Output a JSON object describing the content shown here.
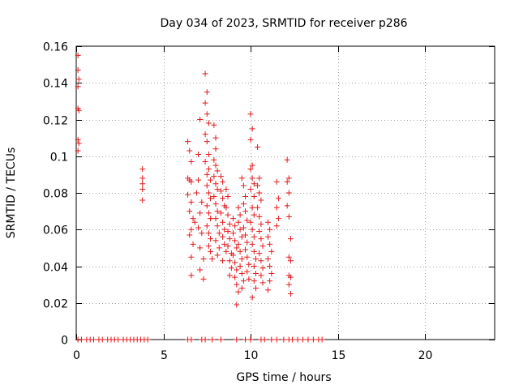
{
  "chart_data": {
    "type": "scatter",
    "title": "Day 034 of 2023, SRMTID for receiver p286",
    "xlabel": "GPS time / hours",
    "ylabel": "SRMTID / TECUs",
    "xlim": [
      0,
      24
    ],
    "ylim": [
      0,
      0.16
    ],
    "xticks": [
      0,
      5,
      10,
      15,
      20
    ],
    "yticks": [
      0,
      0.02,
      0.04,
      0.06,
      0.08,
      0.1,
      0.12,
      0.14,
      0.16
    ],
    "ytick_labels": [
      "0",
      "0.02",
      "0.04",
      "0.06",
      "0.08",
      "0.1",
      "0.12",
      "0.14",
      "0.16"
    ],
    "grid": true,
    "marker": "+",
    "series": [
      {
        "name": "SRMTID",
        "color": "#e41a1c",
        "points": [
          [
            0.1,
            0.155
          ],
          [
            0.1,
            0.147
          ],
          [
            0.15,
            0.142
          ],
          [
            0.1,
            0.138
          ],
          [
            0.1,
            0.126
          ],
          [
            0.15,
            0.125
          ],
          [
            0.1,
            0.109
          ],
          [
            0.15,
            0.107
          ],
          [
            0.1,
            0.103
          ],
          [
            3.8,
            0.093
          ],
          [
            3.8,
            0.088
          ],
          [
            3.8,
            0.085
          ],
          [
            3.8,
            0.082
          ],
          [
            3.8,
            0.076
          ],
          [
            6.4,
            0.108
          ],
          [
            6.5,
            0.103
          ],
          [
            6.6,
            0.097
          ],
          [
            6.4,
            0.088
          ],
          [
            6.5,
            0.087
          ],
          [
            6.6,
            0.086
          ],
          [
            6.4,
            0.079
          ],
          [
            6.6,
            0.075
          ],
          [
            6.5,
            0.07
          ],
          [
            6.7,
            0.066
          ],
          [
            6.6,
            0.06
          ],
          [
            6.5,
            0.057
          ],
          [
            6.7,
            0.052
          ],
          [
            6.6,
            0.045
          ],
          [
            6.6,
            0.035
          ],
          [
            6.8,
            0.064
          ],
          [
            6.9,
            0.08
          ],
          [
            7.0,
            0.101
          ],
          [
            7.1,
            0.12
          ],
          [
            7.0,
            0.087
          ],
          [
            7.2,
            0.075
          ],
          [
            7.1,
            0.069
          ],
          [
            7.0,
            0.061
          ],
          [
            7.2,
            0.058
          ],
          [
            7.1,
            0.05
          ],
          [
            7.3,
            0.044
          ],
          [
            7.1,
            0.038
          ],
          [
            7.3,
            0.033
          ],
          [
            7.4,
            0.145
          ],
          [
            7.5,
            0.135
          ],
          [
            7.4,
            0.129
          ],
          [
            7.5,
            0.123
          ],
          [
            7.6,
            0.118
          ],
          [
            7.4,
            0.112
          ],
          [
            7.5,
            0.108
          ],
          [
            7.6,
            0.101
          ],
          [
            7.4,
            0.097
          ],
          [
            7.6,
            0.093
          ],
          [
            7.5,
            0.09
          ],
          [
            7.7,
            0.087
          ],
          [
            7.5,
            0.084
          ],
          [
            7.6,
            0.08
          ],
          [
            7.7,
            0.077
          ],
          [
            7.5,
            0.073
          ],
          [
            7.6,
            0.069
          ],
          [
            7.7,
            0.066
          ],
          [
            7.5,
            0.062
          ],
          [
            7.6,
            0.058
          ],
          [
            7.7,
            0.055
          ],
          [
            7.6,
            0.051
          ],
          [
            7.7,
            0.048
          ],
          [
            7.8,
            0.044
          ],
          [
            7.9,
            0.117
          ],
          [
            8.0,
            0.11
          ],
          [
            8.0,
            0.104
          ],
          [
            7.9,
            0.098
          ],
          [
            8.0,
            0.095
          ],
          [
            8.1,
            0.092
          ],
          [
            7.9,
            0.089
          ],
          [
            8.0,
            0.085
          ],
          [
            8.1,
            0.082
          ],
          [
            7.9,
            0.078
          ],
          [
            8.0,
            0.074
          ],
          [
            8.1,
            0.07
          ],
          [
            8.0,
            0.066
          ],
          [
            8.1,
            0.062
          ],
          [
            8.2,
            0.058
          ],
          [
            8.0,
            0.054
          ],
          [
            8.2,
            0.05
          ],
          [
            8.1,
            0.046
          ],
          [
            8.3,
            0.089
          ],
          [
            8.4,
            0.086
          ],
          [
            8.3,
            0.081
          ],
          [
            8.4,
            0.077
          ],
          [
            8.5,
            0.073
          ],
          [
            8.3,
            0.069
          ],
          [
            8.4,
            0.064
          ],
          [
            8.5,
            0.06
          ],
          [
            8.4,
            0.056
          ],
          [
            8.5,
            0.052
          ],
          [
            8.6,
            0.048
          ],
          [
            8.4,
            0.043
          ],
          [
            8.6,
            0.082
          ],
          [
            8.7,
            0.078
          ],
          [
            8.6,
            0.072
          ],
          [
            8.7,
            0.068
          ],
          [
            8.8,
            0.063
          ],
          [
            8.7,
            0.059
          ],
          [
            8.8,
            0.055
          ],
          [
            8.7,
            0.051
          ],
          [
            8.9,
            0.047
          ],
          [
            8.8,
            0.043
          ],
          [
            8.9,
            0.039
          ],
          [
            8.8,
            0.035
          ],
          [
            9.0,
            0.066
          ],
          [
            9.1,
            0.062
          ],
          [
            9.0,
            0.058
          ],
          [
            9.1,
            0.054
          ],
          [
            9.2,
            0.05
          ],
          [
            9.0,
            0.046
          ],
          [
            9.1,
            0.042
          ],
          [
            9.2,
            0.038
          ],
          [
            9.1,
            0.034
          ],
          [
            9.2,
            0.03
          ],
          [
            9.3,
            0.026
          ],
          [
            9.2,
            0.019
          ],
          [
            9.3,
            0.072
          ],
          [
            9.4,
            0.068
          ],
          [
            9.3,
            0.064
          ],
          [
            9.4,
            0.06
          ],
          [
            9.5,
            0.056
          ],
          [
            9.3,
            0.052
          ],
          [
            9.4,
            0.048
          ],
          [
            9.5,
            0.044
          ],
          [
            9.4,
            0.04
          ],
          [
            9.5,
            0.036
          ],
          [
            9.6,
            0.032
          ],
          [
            9.5,
            0.028
          ],
          [
            9.5,
            0.088
          ],
          [
            9.6,
            0.084
          ],
          [
            9.7,
            0.078
          ],
          [
            9.6,
            0.074
          ],
          [
            9.7,
            0.07
          ],
          [
            9.8,
            0.065
          ],
          [
            9.6,
            0.061
          ],
          [
            9.7,
            0.057
          ],
          [
            9.8,
            0.053
          ],
          [
            9.7,
            0.049
          ],
          [
            9.8,
            0.045
          ],
          [
            9.9,
            0.041
          ],
          [
            9.8,
            0.037
          ],
          [
            9.9,
            0.033
          ],
          [
            10.0,
            0.123
          ],
          [
            10.1,
            0.115
          ],
          [
            10.0,
            0.109
          ],
          [
            10.1,
            0.095
          ],
          [
            10.0,
            0.093
          ],
          [
            10.1,
            0.088
          ],
          [
            10.2,
            0.085
          ],
          [
            10.0,
            0.082
          ],
          [
            10.2,
            0.078
          ],
          [
            10.1,
            0.072
          ],
          [
            10.2,
            0.068
          ],
          [
            10.0,
            0.064
          ],
          [
            10.1,
            0.06
          ],
          [
            10.2,
            0.056
          ],
          [
            10.1,
            0.052
          ],
          [
            10.2,
            0.048
          ],
          [
            10.3,
            0.044
          ],
          [
            10.2,
            0.04
          ],
          [
            10.3,
            0.036
          ],
          [
            10.2,
            0.032
          ],
          [
            10.3,
            0.028
          ],
          [
            10.1,
            0.023
          ],
          [
            10.4,
            0.105
          ],
          [
            10.5,
            0.088
          ],
          [
            10.4,
            0.084
          ],
          [
            10.5,
            0.08
          ],
          [
            10.6,
            0.076
          ],
          [
            10.4,
            0.072
          ],
          [
            10.5,
            0.067
          ],
          [
            10.6,
            0.063
          ],
          [
            10.5,
            0.059
          ],
          [
            10.6,
            0.055
          ],
          [
            10.7,
            0.051
          ],
          [
            10.5,
            0.047
          ],
          [
            10.6,
            0.043
          ],
          [
            10.7,
            0.039
          ],
          [
            10.6,
            0.035
          ],
          [
            10.7,
            0.031
          ],
          [
            11.0,
            0.064
          ],
          [
            11.1,
            0.06
          ],
          [
            11.0,
            0.056
          ],
          [
            11.1,
            0.052
          ],
          [
            11.2,
            0.048
          ],
          [
            11.0,
            0.044
          ],
          [
            11.1,
            0.04
          ],
          [
            11.2,
            0.036
          ],
          [
            11.1,
            0.032
          ],
          [
            11.0,
            0.027
          ],
          [
            11.5,
            0.086
          ],
          [
            11.6,
            0.077
          ],
          [
            11.5,
            0.072
          ],
          [
            11.6,
            0.066
          ],
          [
            11.5,
            0.062
          ],
          [
            12.1,
            0.098
          ],
          [
            12.2,
            0.088
          ],
          [
            12.1,
            0.086
          ],
          [
            12.2,
            0.08
          ],
          [
            12.1,
            0.073
          ],
          [
            12.2,
            0.067
          ],
          [
            12.3,
            0.055
          ],
          [
            12.2,
            0.045
          ],
          [
            12.3,
            0.043
          ],
          [
            12.2,
            0.035
          ],
          [
            12.3,
            0.034
          ],
          [
            12.2,
            0.03
          ],
          [
            12.3,
            0.025
          ],
          [
            0.1,
            0
          ],
          [
            0.3,
            0
          ],
          [
            0.6,
            0
          ],
          [
            0.8,
            0
          ],
          [
            1.0,
            0
          ],
          [
            1.3,
            0
          ],
          [
            1.5,
            0
          ],
          [
            1.8,
            0
          ],
          [
            2.0,
            0
          ],
          [
            2.2,
            0
          ],
          [
            2.4,
            0
          ],
          [
            2.7,
            0
          ],
          [
            2.9,
            0
          ],
          [
            3.1,
            0
          ],
          [
            3.3,
            0
          ],
          [
            3.5,
            0
          ],
          [
            3.7,
            0
          ],
          [
            3.9,
            0
          ],
          [
            4.1,
            0
          ],
          [
            6.4,
            0
          ],
          [
            6.6,
            0
          ],
          [
            7.2,
            0
          ],
          [
            7.4,
            0
          ],
          [
            7.8,
            0
          ],
          [
            8.3,
            0
          ],
          [
            9.2,
            0
          ],
          [
            9.7,
            0
          ],
          [
            10.0,
            0
          ],
          [
            10.6,
            0
          ],
          [
            10.8,
            0
          ],
          [
            11.2,
            0
          ],
          [
            11.5,
            0
          ],
          [
            11.9,
            0
          ],
          [
            12.2,
            0
          ],
          [
            12.4,
            0
          ],
          [
            12.7,
            0
          ],
          [
            13.0,
            0
          ],
          [
            13.3,
            0
          ],
          [
            13.6,
            0
          ],
          [
            13.9,
            0
          ],
          [
            14.1,
            0
          ]
        ]
      }
    ]
  }
}
